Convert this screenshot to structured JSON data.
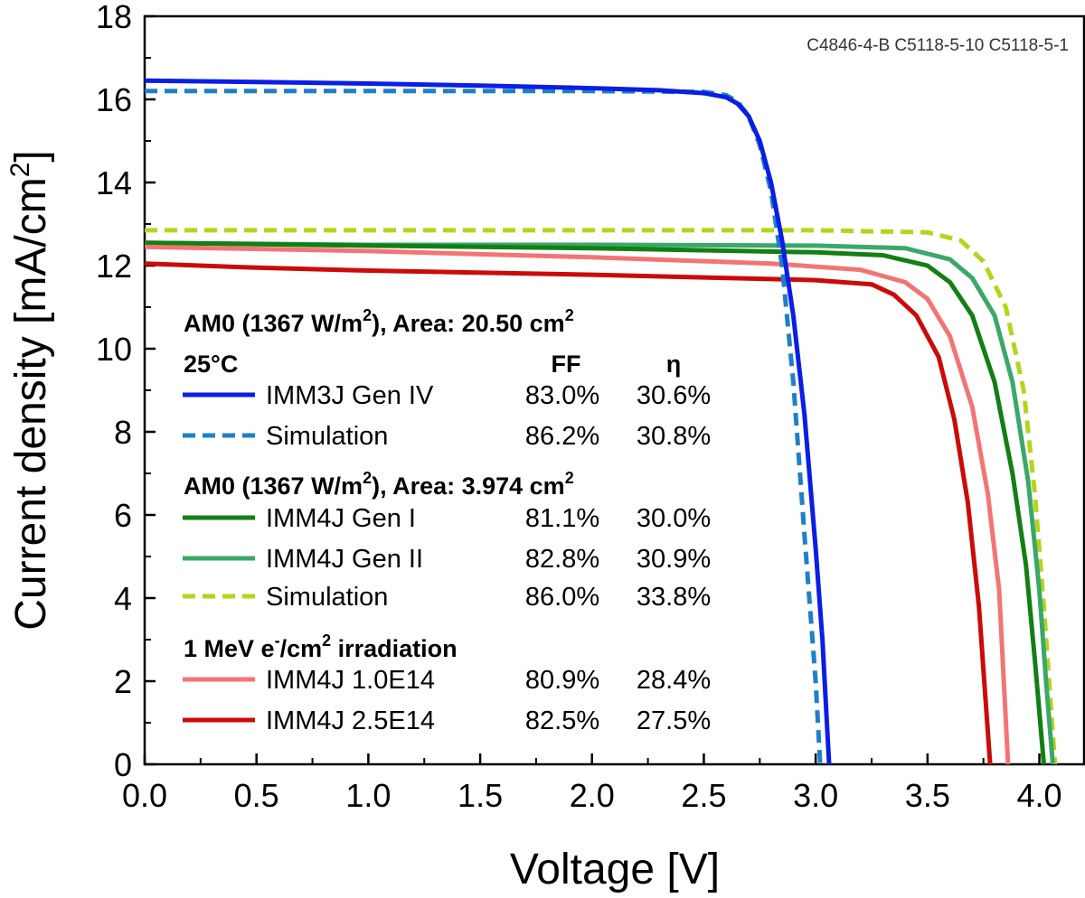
{
  "chart_data": {
    "type": "line",
    "xlabel": "Voltage [V]",
    "ylabel_main": "Current density [mA/cm",
    "ylabel_sup": "2",
    "ylabel_tail": "]",
    "xlim": [
      0,
      4.2
    ],
    "ylim": [
      0,
      18
    ],
    "xticks": [
      "0.0",
      "0.5",
      "1.0",
      "1.5",
      "2.0",
      "2.5",
      "3.0",
      "3.5",
      "4.0"
    ],
    "yticks": [
      "0",
      "2",
      "4",
      "6",
      "8",
      "10",
      "12",
      "14",
      "16",
      "18"
    ],
    "sample_ids": "C4846-4-B C5118-5-10 C5118-5-1",
    "legend": {
      "group1_head_a": "AM0 (1367 W/m",
      "group1_head_sup": "2",
      "group1_head_b": "), Area: 20.50 cm",
      "group1_head_sup2": "2",
      "temp": "25°C",
      "col_ff": "FF",
      "col_eta": "η",
      "group2_head_a": "AM0 (1367 W/m",
      "group2_head_sup": "2",
      "group2_head_b": "), Area: 3.974 cm",
      "group2_head_sup2": "2",
      "group3_head_a": "1 MeV e",
      "group3_head_sup1": "-",
      "group3_head_b": "/cm",
      "group3_head_sup2": "2",
      "group3_head_c": " irradiation"
    },
    "grid": false,
    "series": [
      {
        "name": "IMM3J Gen IV",
        "ff": "83.0%",
        "eta": "30.6%",
        "color": "#0a1ee6",
        "dashed": false,
        "points": [
          [
            0,
            16.45
          ],
          [
            0.5,
            16.42
          ],
          [
            1.0,
            16.38
          ],
          [
            1.5,
            16.33
          ],
          [
            2.0,
            16.27
          ],
          [
            2.3,
            16.22
          ],
          [
            2.5,
            16.15
          ],
          [
            2.6,
            16.05
          ],
          [
            2.65,
            15.9
          ],
          [
            2.7,
            15.6
          ],
          [
            2.75,
            15.0
          ],
          [
            2.8,
            14.0
          ],
          [
            2.85,
            12.6
          ],
          [
            2.9,
            10.8
          ],
          [
            2.95,
            8.4
          ],
          [
            3.0,
            5.2
          ],
          [
            3.03,
            3.0
          ],
          [
            3.06,
            0
          ]
        ]
      },
      {
        "name": "Simulation",
        "ff": "86.2%",
        "eta": "30.8%",
        "color": "#1f7fc8",
        "dashed": true,
        "points": [
          [
            0,
            16.2
          ],
          [
            1.0,
            16.2
          ],
          [
            2.0,
            16.2
          ],
          [
            2.5,
            16.18
          ],
          [
            2.6,
            16.1
          ],
          [
            2.65,
            15.95
          ],
          [
            2.7,
            15.6
          ],
          [
            2.75,
            14.9
          ],
          [
            2.8,
            13.8
          ],
          [
            2.85,
            12.0
          ],
          [
            2.9,
            9.2
          ],
          [
            2.95,
            5.5
          ],
          [
            3.0,
            2.0
          ],
          [
            3.02,
            0
          ]
        ]
      },
      {
        "name": "IMM4J Gen I",
        "ff": "81.1%",
        "eta": "30.0%",
        "color": "#137f13",
        "dashed": false,
        "points": [
          [
            0,
            12.55
          ],
          [
            1.0,
            12.48
          ],
          [
            2.0,
            12.42
          ],
          [
            3.0,
            12.32
          ],
          [
            3.3,
            12.25
          ],
          [
            3.5,
            12.0
          ],
          [
            3.6,
            11.6
          ],
          [
            3.7,
            10.8
          ],
          [
            3.8,
            9.2
          ],
          [
            3.88,
            7.0
          ],
          [
            3.94,
            4.8
          ],
          [
            3.98,
            2.5
          ],
          [
            4.02,
            0
          ]
        ]
      },
      {
        "name": "IMM4J Gen II",
        "ff": "82.8%",
        "eta": "30.9%",
        "color": "#3aa86a",
        "dashed": false,
        "points": [
          [
            0,
            12.55
          ],
          [
            1.0,
            12.5
          ],
          [
            2.0,
            12.5
          ],
          [
            3.0,
            12.48
          ],
          [
            3.4,
            12.42
          ],
          [
            3.6,
            12.15
          ],
          [
            3.7,
            11.7
          ],
          [
            3.8,
            10.8
          ],
          [
            3.88,
            9.2
          ],
          [
            3.95,
            6.8
          ],
          [
            4.0,
            4.2
          ],
          [
            4.03,
            2.0
          ],
          [
            4.06,
            0
          ]
        ]
      },
      {
        "name": "Simulation",
        "ff": "86.0%",
        "eta": "33.8%",
        "color": "#b5d41c",
        "dashed": true,
        "points": [
          [
            0,
            12.85
          ],
          [
            1.0,
            12.85
          ],
          [
            2.0,
            12.85
          ],
          [
            3.0,
            12.85
          ],
          [
            3.5,
            12.8
          ],
          [
            3.65,
            12.6
          ],
          [
            3.75,
            12.1
          ],
          [
            3.85,
            11.0
          ],
          [
            3.93,
            9.0
          ],
          [
            3.98,
            6.5
          ],
          [
            4.02,
            3.8
          ],
          [
            4.05,
            1.5
          ],
          [
            4.07,
            0
          ]
        ]
      },
      {
        "name": "IMM4J 1.0E14",
        "ff": "80.9%",
        "eta": "28.4%",
        "color": "#f47474",
        "dashed": false,
        "points": [
          [
            0,
            12.45
          ],
          [
            1.0,
            12.35
          ],
          [
            2.0,
            12.2
          ],
          [
            2.8,
            12.05
          ],
          [
            3.2,
            11.9
          ],
          [
            3.4,
            11.6
          ],
          [
            3.5,
            11.2
          ],
          [
            3.6,
            10.3
          ],
          [
            3.7,
            8.6
          ],
          [
            3.77,
            6.5
          ],
          [
            3.82,
            4.2
          ],
          [
            3.86,
            0
          ]
        ]
      },
      {
        "name": "IMM4J 2.5E14",
        "ff": "82.5%",
        "eta": "27.5%",
        "color": "#cc0a0a",
        "dashed": false,
        "points": [
          [
            0,
            12.05
          ],
          [
            0.5,
            11.95
          ],
          [
            1.0,
            11.88
          ],
          [
            2.0,
            11.78
          ],
          [
            3.0,
            11.65
          ],
          [
            3.25,
            11.55
          ],
          [
            3.35,
            11.3
          ],
          [
            3.45,
            10.8
          ],
          [
            3.55,
            9.8
          ],
          [
            3.62,
            8.3
          ],
          [
            3.68,
            6.3
          ],
          [
            3.73,
            3.8
          ],
          [
            3.76,
            1.5
          ],
          [
            3.78,
            0
          ]
        ]
      }
    ]
  }
}
